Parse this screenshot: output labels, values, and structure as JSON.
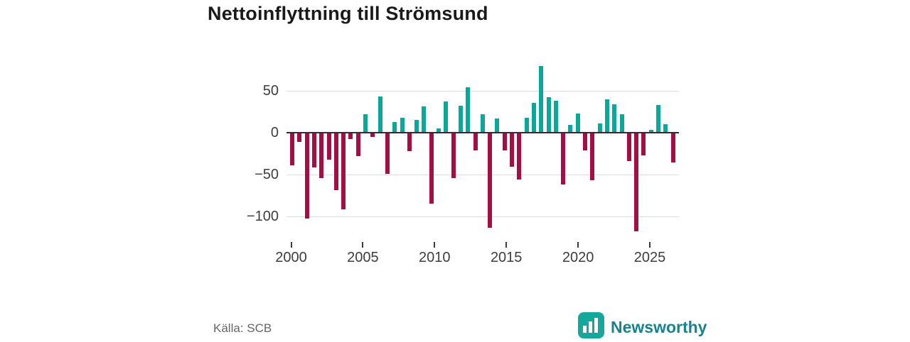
{
  "title": "Nettoinflyttning till Strömsund",
  "source_label": "Källa: SCB",
  "logo": {
    "brand": "Newsworthy"
  },
  "colors": {
    "positive": "#0aa79b",
    "negative": "#a50d45",
    "gridline": "#dcdcdc",
    "zeroline": "#2e2e2e",
    "logo_square": "#14a79b",
    "logo_word": "#17838e"
  },
  "axes": {
    "y_ticks": [
      {
        "label": "50",
        "value": 50
      },
      {
        "label": "0",
        "value": 0
      },
      {
        "label": "−50",
        "value": -50
      },
      {
        "label": "−100",
        "value": -100
      }
    ],
    "x_ticks": [
      {
        "label": "2000",
        "year": 2000
      },
      {
        "label": "2005",
        "year": 2005
      },
      {
        "label": "2010",
        "year": 2010
      },
      {
        "label": "2015",
        "year": 2015
      },
      {
        "label": "2020",
        "year": 2020
      },
      {
        "label": "2025",
        "year": 2025
      }
    ]
  },
  "chart_data": {
    "type": "bar",
    "title": "Nettoinflyttning till Strömsund",
    "xlabel": "",
    "ylabel": "",
    "ylim": [
      -135,
      90
    ],
    "grid": true,
    "frequency": "half-year",
    "x_range": [
      2000,
      2026
    ],
    "positive_color": "#0aa79b",
    "negative_color": "#a50d45",
    "series": [
      {
        "period": "2000 H1",
        "value": -38
      },
      {
        "period": "2000 H2",
        "value": -10
      },
      {
        "period": "2001 H1",
        "value": -102
      },
      {
        "period": "2001 H2",
        "value": -41
      },
      {
        "period": "2002 H1",
        "value": -53
      },
      {
        "period": "2002 H2",
        "value": -31
      },
      {
        "period": "2003 H1",
        "value": -68
      },
      {
        "period": "2003 H2",
        "value": -91
      },
      {
        "period": "2004 H1",
        "value": -7
      },
      {
        "period": "2004 H2",
        "value": -27
      },
      {
        "period": "2005 H1",
        "value": 22
      },
      {
        "period": "2005 H2",
        "value": -4
      },
      {
        "period": "2006 H1",
        "value": 43
      },
      {
        "period": "2006 H2",
        "value": -48
      },
      {
        "period": "2007 H1",
        "value": 13
      },
      {
        "period": "2007 H2",
        "value": 18
      },
      {
        "period": "2008 H1",
        "value": -21
      },
      {
        "period": "2008 H2",
        "value": 15
      },
      {
        "period": "2009 H1",
        "value": 31
      },
      {
        "period": "2009 H2",
        "value": -84
      },
      {
        "period": "2010 H1",
        "value": 5
      },
      {
        "period": "2010 H2",
        "value": 37
      },
      {
        "period": "2011 H1",
        "value": -53
      },
      {
        "period": "2011 H2",
        "value": 32
      },
      {
        "period": "2012 H1",
        "value": 54
      },
      {
        "period": "2012 H2",
        "value": -20
      },
      {
        "period": "2013 H1",
        "value": 22
      },
      {
        "period": "2013 H2",
        "value": -113
      },
      {
        "period": "2014 H1",
        "value": 17
      },
      {
        "period": "2014 H2",
        "value": -20
      },
      {
        "period": "2015 H1",
        "value": -40
      },
      {
        "period": "2015 H2",
        "value": -55
      },
      {
        "period": "2016 H1",
        "value": 18
      },
      {
        "period": "2016 H2",
        "value": 36
      },
      {
        "period": "2017 H1",
        "value": 80
      },
      {
        "period": "2017 H2",
        "value": 42
      },
      {
        "period": "2018 H1",
        "value": 38
      },
      {
        "period": "2018 H2",
        "value": -61
      },
      {
        "period": "2019 H1",
        "value": 9
      },
      {
        "period": "2019 H2",
        "value": 23
      },
      {
        "period": "2020 H1",
        "value": -20
      },
      {
        "period": "2020 H2",
        "value": -56
      },
      {
        "period": "2021 H1",
        "value": 11
      },
      {
        "period": "2021 H2",
        "value": 40
      },
      {
        "period": "2022 H1",
        "value": 34
      },
      {
        "period": "2022 H2",
        "value": 22
      },
      {
        "period": "2023 H1",
        "value": -33
      },
      {
        "period": "2023 H2",
        "value": -117
      },
      {
        "period": "2024 H1",
        "value": -26
      },
      {
        "period": "2024 H2",
        "value": 3
      },
      {
        "period": "2025 H1",
        "value": 33
      },
      {
        "period": "2025 H2",
        "value": 10
      },
      {
        "period": "2026 H1",
        "value": -35
      }
    ]
  }
}
